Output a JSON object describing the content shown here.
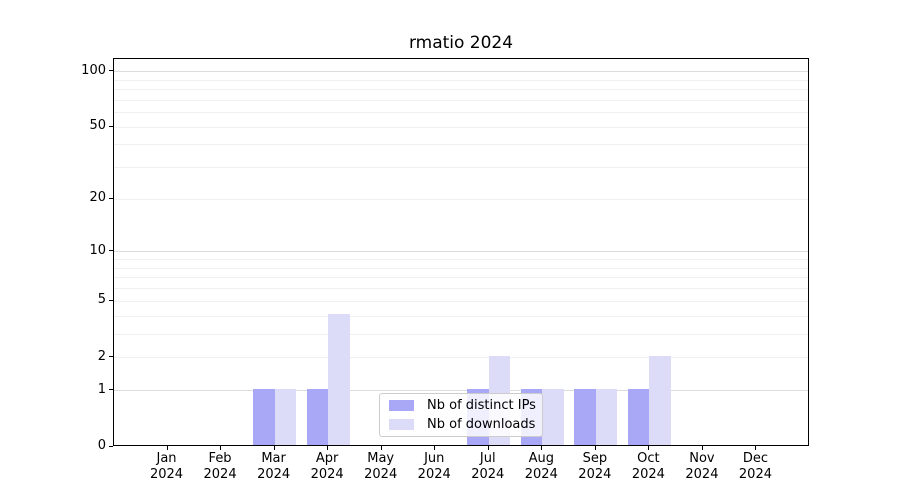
{
  "chart_data": {
    "type": "bar",
    "title": "rmatio 2024",
    "categories": [
      "Jan 2024",
      "Feb 2024",
      "Mar 2024",
      "Apr 2024",
      "May 2024",
      "Jun 2024",
      "Jul 2024",
      "Aug 2024",
      "Sep 2024",
      "Oct 2024",
      "Nov 2024",
      "Dec 2024"
    ],
    "x_tick_labels": [
      [
        "Jan",
        "2024"
      ],
      [
        "Feb",
        "2024"
      ],
      [
        "Mar",
        "2024"
      ],
      [
        "Apr",
        "2024"
      ],
      [
        "May",
        "2024"
      ],
      [
        "Jun",
        "2024"
      ],
      [
        "Jul",
        "2024"
      ],
      [
        "Aug",
        "2024"
      ],
      [
        "Sep",
        "2024"
      ],
      [
        "Oct",
        "2024"
      ],
      [
        "Nov",
        "2024"
      ],
      [
        "Dec",
        "2024"
      ]
    ],
    "series": [
      {
        "name": "Nb of distinct IPs",
        "key": "distinct-ips",
        "color": "#a8a8f6",
        "values": [
          0,
          0,
          1,
          1,
          0,
          0,
          1,
          1,
          1,
          1,
          0,
          0
        ]
      },
      {
        "name": "Nb of downloads",
        "key": "downloads",
        "color": "#dcdcf8",
        "values": [
          0,
          0,
          1,
          4,
          0,
          0,
          2,
          1,
          1,
          2,
          0,
          0
        ]
      }
    ],
    "yscale": "log1p",
    "yticks": [
      0,
      1,
      2,
      5,
      10,
      20,
      50,
      100
    ],
    "ylim": [
      0,
      117
    ],
    "grid": true,
    "legend_position": "lower-center-inside",
    "colors": {
      "grid_minor": "#f0f0f0",
      "grid_major": "#dcdcdc",
      "axis": "#000000",
      "legend_border": "#cccccc",
      "background": "#ffffff"
    }
  }
}
